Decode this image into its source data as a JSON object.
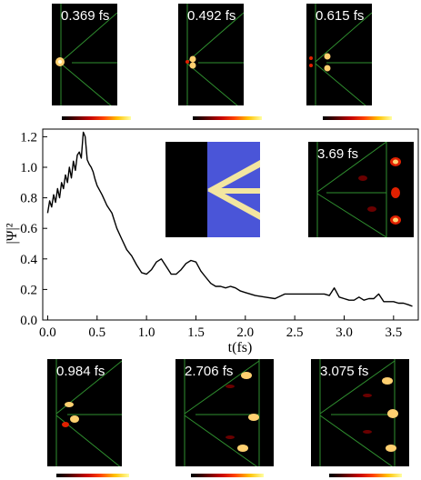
{
  "snapshots_top": [
    {
      "time_label": "0.369 fs"
    },
    {
      "time_label": "0.492 fs"
    },
    {
      "time_label": "0.615 fs"
    }
  ],
  "snapshots_inset": {
    "time_label": "3.69 fs"
  },
  "snapshots_bottom": [
    {
      "time_label": "0.984 fs"
    },
    {
      "time_label": "2.706 fs"
    },
    {
      "time_label": "3.075 fs"
    }
  ],
  "colors": {
    "plot_line": "#000000",
    "guide_lines": "#2f8f2f",
    "inset_background": "#4a55d8",
    "inset_waveguide": "#f3e6a0",
    "density_hot": "#ffd070",
    "density_mid": "#e02000"
  },
  "chart_data": {
    "type": "line",
    "title": "",
    "xlabel": "t(fs)",
    "ylabel": "|Ψ|²",
    "xlim": [
      -0.05,
      3.75
    ],
    "ylim": [
      0.0,
      1.25
    ],
    "xticks": [
      "0.0",
      "0.5",
      "1.0",
      "1.5",
      "2.0",
      "2.5",
      "3.0",
      "3.5"
    ],
    "yticks": [
      "0.0",
      "0.2",
      "0.4",
      "0.6",
      "0.8",
      "1.0",
      "1.2"
    ],
    "grid": false,
    "series": [
      {
        "x": [
          0.0,
          0.02,
          0.04,
          0.06,
          0.08,
          0.1,
          0.12,
          0.14,
          0.16,
          0.18,
          0.2,
          0.22,
          0.24,
          0.26,
          0.28,
          0.3,
          0.32,
          0.34,
          0.36,
          0.38,
          0.4,
          0.42,
          0.44,
          0.46,
          0.48,
          0.5,
          0.55,
          0.6,
          0.65,
          0.7,
          0.75,
          0.8,
          0.85,
          0.9,
          0.95,
          1.0,
          1.05,
          1.1,
          1.15,
          1.2,
          1.25,
          1.3,
          1.35,
          1.4,
          1.45,
          1.5,
          1.55,
          1.6,
          1.65,
          1.7,
          1.75,
          1.8,
          1.85,
          1.9,
          1.95,
          2.0,
          2.1,
          2.2,
          2.3,
          2.4,
          2.5,
          2.6,
          2.7,
          2.8,
          2.85,
          2.9,
          2.95,
          3.0,
          3.05,
          3.1,
          3.15,
          3.2,
          3.25,
          3.3,
          3.35,
          3.4,
          3.45,
          3.5,
          3.55,
          3.6,
          3.65,
          3.69
        ],
        "y": [
          0.7,
          0.78,
          0.74,
          0.82,
          0.77,
          0.86,
          0.8,
          0.9,
          0.86,
          0.95,
          0.9,
          1.0,
          0.93,
          1.04,
          0.98,
          1.08,
          1.1,
          1.06,
          1.23,
          1.2,
          1.05,
          1.02,
          1.0,
          0.97,
          0.92,
          0.88,
          0.82,
          0.75,
          0.7,
          0.6,
          0.53,
          0.46,
          0.42,
          0.36,
          0.31,
          0.3,
          0.33,
          0.38,
          0.4,
          0.35,
          0.3,
          0.3,
          0.33,
          0.37,
          0.39,
          0.38,
          0.32,
          0.28,
          0.24,
          0.22,
          0.22,
          0.21,
          0.22,
          0.21,
          0.19,
          0.18,
          0.16,
          0.15,
          0.14,
          0.17,
          0.17,
          0.17,
          0.17,
          0.17,
          0.16,
          0.21,
          0.15,
          0.14,
          0.13,
          0.13,
          0.15,
          0.13,
          0.14,
          0.14,
          0.17,
          0.12,
          0.12,
          0.12,
          0.11,
          0.11,
          0.1,
          0.09
        ]
      }
    ]
  }
}
